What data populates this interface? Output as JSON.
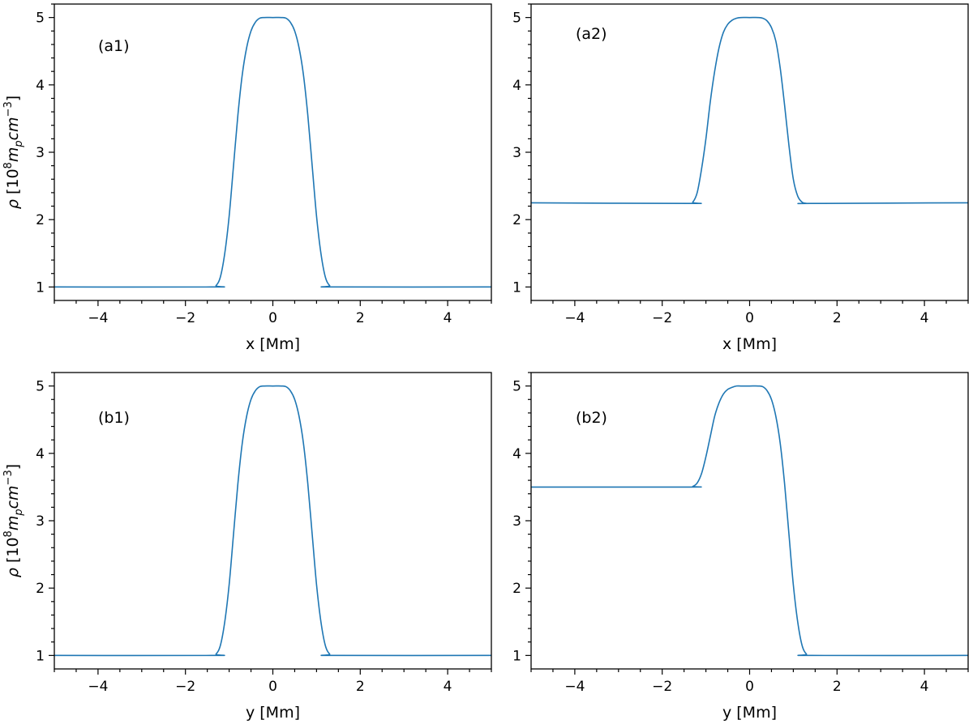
{
  "chart_data": [
    {
      "type": "line",
      "panel_label": "(a1)",
      "xlabel": "x [Mm]",
      "ylabel": "ρ [10⁸m_p cm⁻³]",
      "xlim": [
        -5,
        5
      ],
      "ylim": [
        0.8,
        5.2
      ],
      "xticks": [
        -4,
        -2,
        0,
        2,
        4
      ],
      "xtick_labels": [
        "−4",
        "−2",
        "0",
        "2",
        "4"
      ],
      "yticks": [
        1,
        2,
        3,
        4,
        5
      ],
      "ytick_labels": [
        "1",
        "2",
        "3",
        "4",
        "5"
      ],
      "grid": false,
      "series": [
        {
          "color": "#1f77b4",
          "x": [
            -5,
            -1.4,
            -1.3,
            -1.2,
            -1.1,
            -1.0,
            -0.9,
            -0.8,
            -0.7,
            -0.6,
            -0.5,
            -0.4,
            -0.3,
            -0.2,
            0.0,
            0.2,
            0.3,
            0.4,
            0.5,
            0.6,
            0.7,
            0.8,
            0.9,
            1.0,
            1.1,
            1.2,
            1.3,
            1.4,
            5
          ],
          "y": [
            1.0,
            1.0,
            1.02,
            1.15,
            1.5,
            2.05,
            2.8,
            3.55,
            4.15,
            4.55,
            4.8,
            4.93,
            4.99,
            5.0,
            5.0,
            5.0,
            4.99,
            4.93,
            4.8,
            4.55,
            4.15,
            3.55,
            2.8,
            2.05,
            1.5,
            1.15,
            1.02,
            1.0,
            1.0
          ]
        }
      ]
    },
    {
      "type": "line",
      "panel_label": "(a2)",
      "xlabel": "x [Mm]",
      "ylabel": "",
      "xlim": [
        -5,
        5
      ],
      "ylim": [
        0.8,
        5.2
      ],
      "xticks": [
        -4,
        -2,
        0,
        2,
        4
      ],
      "xtick_labels": [
        "−4",
        "−2",
        "0",
        "2",
        "4"
      ],
      "yticks": [
        1,
        2,
        3,
        4,
        5
      ],
      "ytick_labels": [
        "1",
        "2",
        "3",
        "4",
        "5"
      ],
      "grid": false,
      "series": [
        {
          "color": "#1f77b4",
          "x": [
            -5,
            -1.4,
            -1.3,
            -1.2,
            -1.1,
            -1.0,
            -0.9,
            -0.8,
            -0.7,
            -0.6,
            -0.5,
            -0.4,
            -0.3,
            -0.2,
            0.0,
            0.2,
            0.3,
            0.4,
            0.5,
            0.6,
            0.7,
            0.8,
            0.9,
            1.0,
            1.1,
            1.2,
            1.3,
            1.4,
            5
          ],
          "y": [
            2.25,
            2.24,
            2.26,
            2.4,
            2.75,
            3.2,
            3.75,
            4.2,
            4.55,
            4.78,
            4.9,
            4.96,
            4.99,
            5.0,
            5.0,
            5.0,
            4.99,
            4.95,
            4.85,
            4.65,
            4.25,
            3.7,
            3.1,
            2.6,
            2.35,
            2.26,
            2.24,
            2.24,
            2.25
          ]
        }
      ]
    },
    {
      "type": "line",
      "panel_label": "(b1)",
      "xlabel": "y [Mm]",
      "ylabel": "ρ [10⁸m_p cm⁻³]",
      "xlim": [
        -5,
        5
      ],
      "ylim": [
        0.8,
        5.2
      ],
      "xticks": [
        -4,
        -2,
        0,
        2,
        4
      ],
      "xtick_labels": [
        "−4",
        "−2",
        "0",
        "2",
        "4"
      ],
      "yticks": [
        1,
        2,
        3,
        4,
        5
      ],
      "ytick_labels": [
        "1",
        "2",
        "3",
        "4",
        "5"
      ],
      "grid": false,
      "series": [
        {
          "color": "#1f77b4",
          "x": [
            -5,
            -1.4,
            -1.3,
            -1.2,
            -1.1,
            -1.0,
            -0.9,
            -0.8,
            -0.7,
            -0.6,
            -0.5,
            -0.4,
            -0.3,
            -0.2,
            0.0,
            0.2,
            0.3,
            0.4,
            0.5,
            0.6,
            0.7,
            0.8,
            0.9,
            1.0,
            1.1,
            1.2,
            1.3,
            1.4,
            5
          ],
          "y": [
            1.0,
            1.0,
            1.02,
            1.15,
            1.5,
            2.05,
            2.8,
            3.55,
            4.15,
            4.55,
            4.8,
            4.93,
            4.99,
            5.0,
            5.0,
            5.0,
            4.99,
            4.93,
            4.8,
            4.55,
            4.15,
            3.55,
            2.8,
            2.05,
            1.5,
            1.15,
            1.02,
            1.0,
            1.0
          ]
        }
      ]
    },
    {
      "type": "line",
      "panel_label": "(b2)",
      "xlabel": "y [Mm]",
      "ylabel": "",
      "xlim": [
        -5,
        5
      ],
      "ylim": [
        0.8,
        5.2
      ],
      "xticks": [
        -4,
        -2,
        0,
        2,
        4
      ],
      "xtick_labels": [
        "−4",
        "−2",
        "0",
        "2",
        "4"
      ],
      "yticks": [
        1,
        2,
        3,
        4,
        5
      ],
      "ytick_labels": [
        "1",
        "2",
        "3",
        "4",
        "5"
      ],
      "grid": false,
      "series": [
        {
          "color": "#1f77b4",
          "x": [
            -5,
            -1.4,
            -1.3,
            -1.2,
            -1.1,
            -1.0,
            -0.9,
            -0.8,
            -0.7,
            -0.6,
            -0.5,
            -0.4,
            -0.3,
            -0.2,
            0.0,
            0.2,
            0.3,
            0.4,
            0.5,
            0.6,
            0.7,
            0.8,
            0.9,
            1.0,
            1.1,
            1.2,
            1.3,
            1.4,
            5
          ],
          "y": [
            3.5,
            3.5,
            3.51,
            3.56,
            3.7,
            3.95,
            4.25,
            4.55,
            4.75,
            4.88,
            4.95,
            4.98,
            5.0,
            5.0,
            5.0,
            5.0,
            4.99,
            4.93,
            4.8,
            4.55,
            4.15,
            3.55,
            2.8,
            2.05,
            1.5,
            1.15,
            1.02,
            1.0,
            1.0
          ]
        }
      ]
    }
  ]
}
